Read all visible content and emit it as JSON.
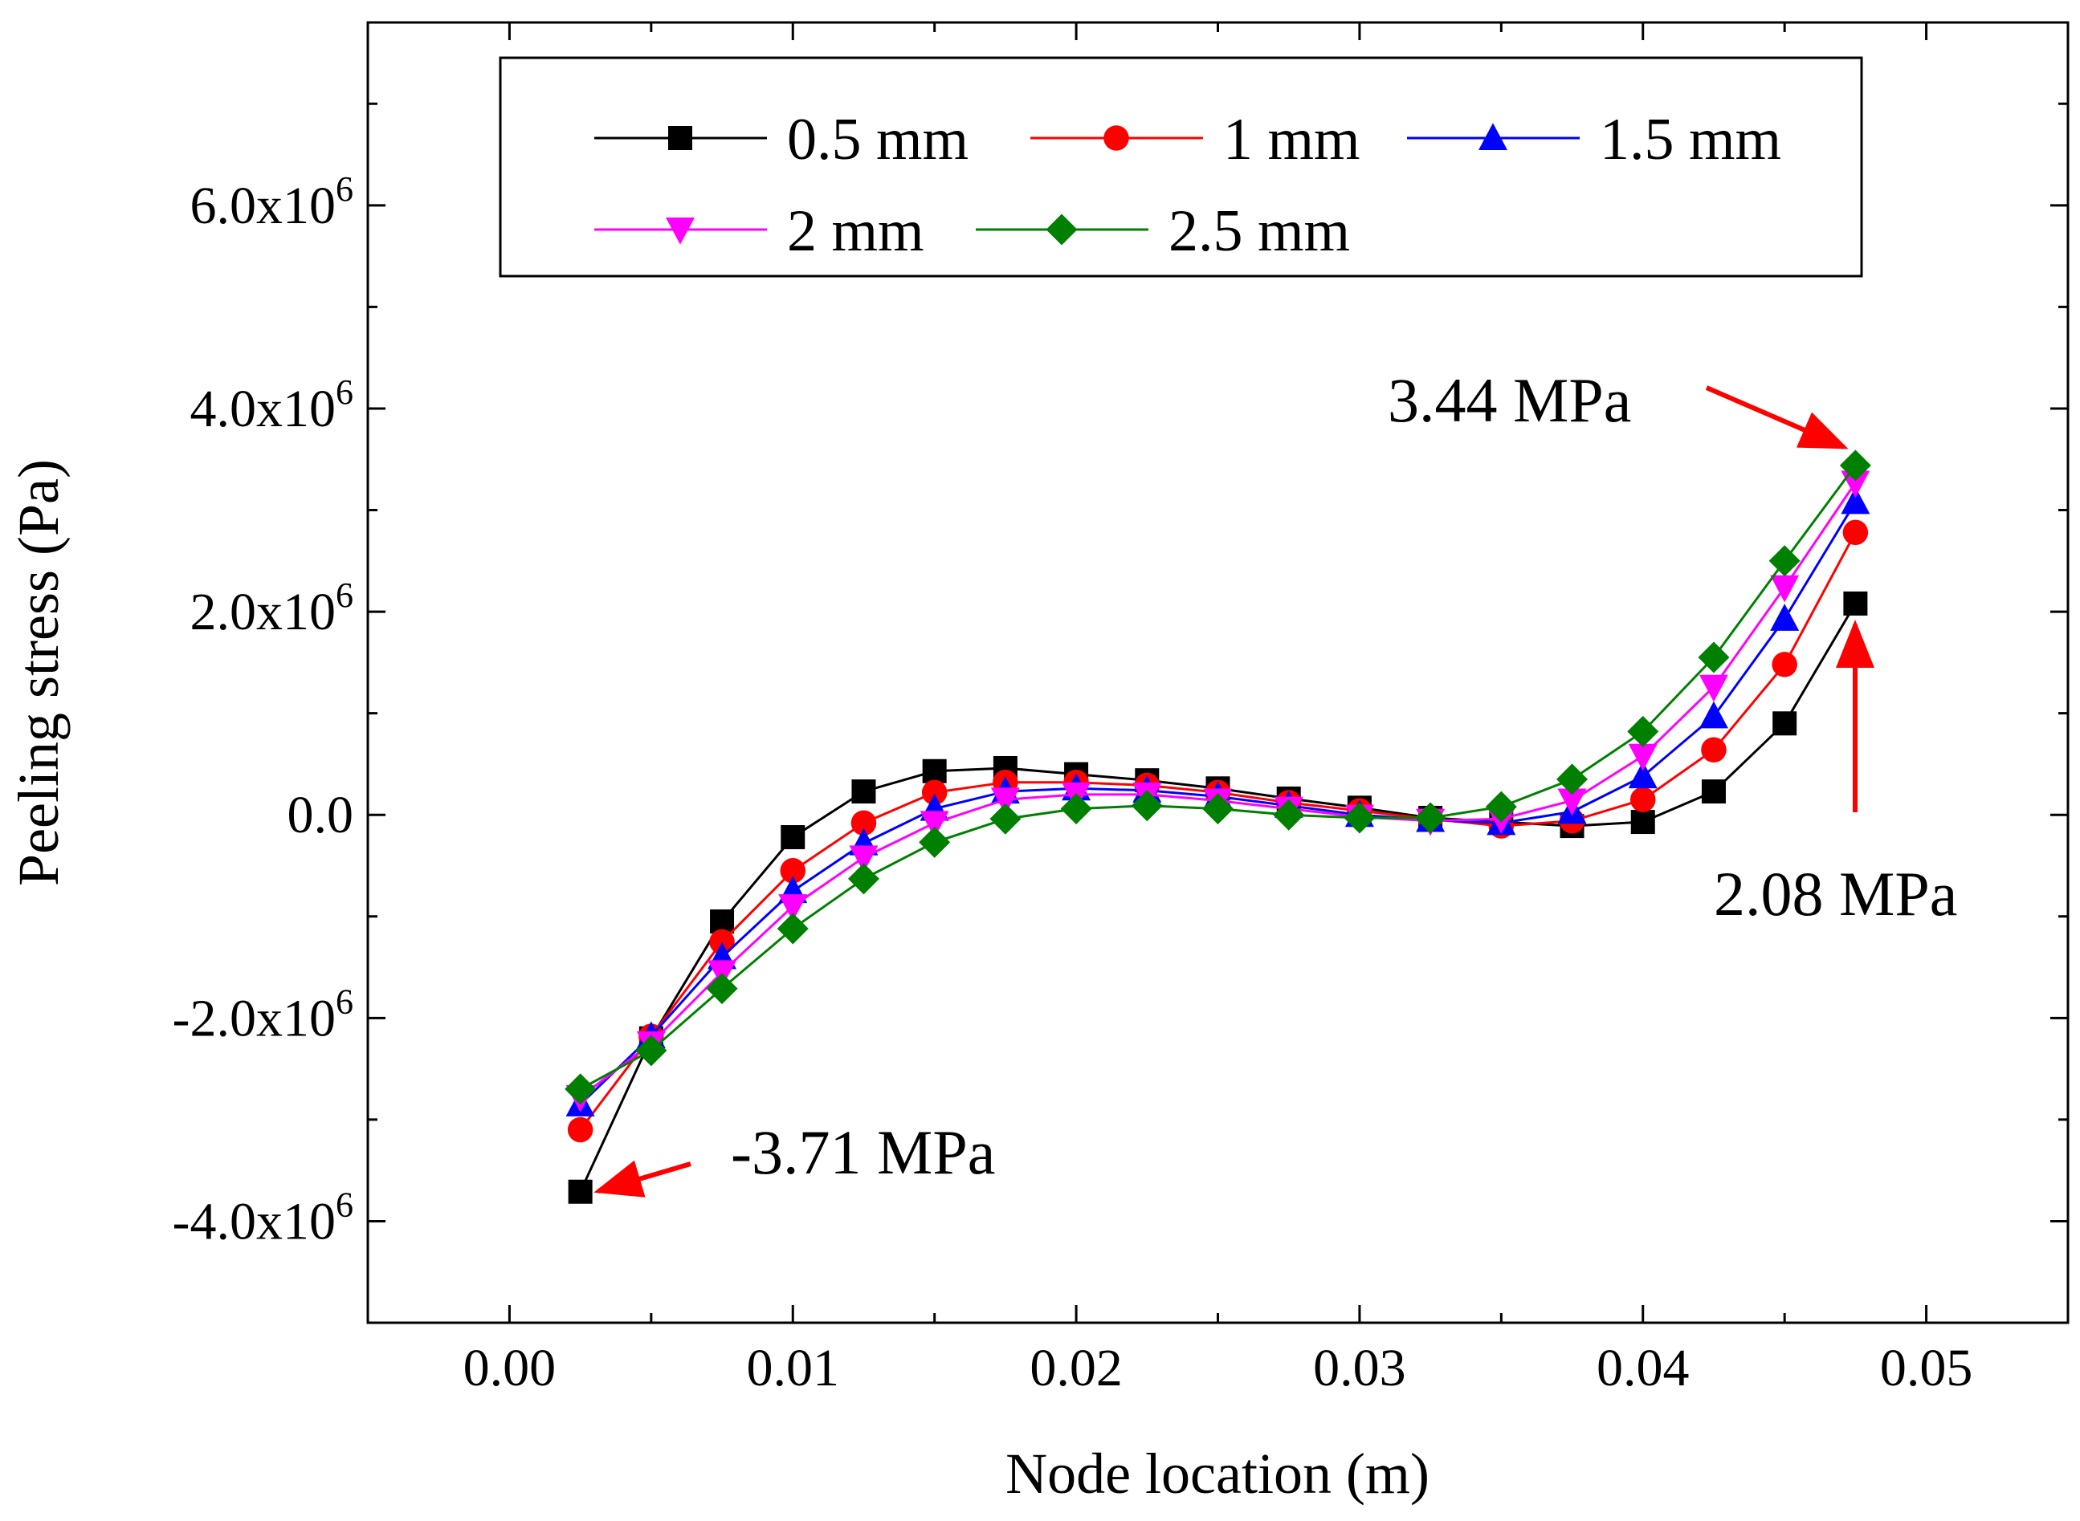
{
  "chart_data": {
    "type": "line",
    "title": "",
    "xlabel": "Node location (m)",
    "ylabel": "Peeling stress (Pa)",
    "xlim": [
      -0.005,
      0.055
    ],
    "ylim": [
      -5000000,
      7800000
    ],
    "x_ticks": [
      0.0,
      0.01,
      0.02,
      0.03,
      0.04,
      0.05
    ],
    "x_tick_labels": [
      "0.00",
      "0.01",
      "0.02",
      "0.03",
      "0.04",
      "0.05"
    ],
    "y_ticks": [
      -4000000,
      -2000000,
      0,
      2000000,
      4000000,
      6000000
    ],
    "y_tick_labels": [
      {
        "mantissa": "-4.0x10",
        "exp": "6"
      },
      {
        "mantissa": "-2.0x10",
        "exp": "6"
      },
      {
        "mantissa": "0.0",
        "exp": ""
      },
      {
        "mantissa": "2.0x10",
        "exp": "6"
      },
      {
        "mantissa": "4.0x10",
        "exp": "6"
      },
      {
        "mantissa": "6.0x10",
        "exp": "6"
      }
    ],
    "grid": false,
    "legend_position": "top-center",
    "x": [
      0.0025,
      0.005,
      0.0075,
      0.01,
      0.0125,
      0.015,
      0.0175,
      0.02,
      0.0225,
      0.025,
      0.0275,
      0.03,
      0.0325,
      0.035,
      0.0375,
      0.04,
      0.0425,
      0.045,
      0.0475
    ],
    "series": [
      {
        "name": "0.5 mm",
        "color": "#000000",
        "marker": "square",
        "values": [
          -3710000,
          -2200000,
          -1050000,
          -220000,
          230000,
          430000,
          460000,
          400000,
          340000,
          260000,
          160000,
          70000,
          -30000,
          -70000,
          -110000,
          -70000,
          230000,
          900000,
          2080000
        ]
      },
      {
        "name": "1 mm",
        "color": "#ff0000",
        "marker": "circle",
        "values": [
          -3100000,
          -2180000,
          -1250000,
          -550000,
          -80000,
          220000,
          320000,
          320000,
          290000,
          220000,
          120000,
          40000,
          -40000,
          -110000,
          -60000,
          150000,
          640000,
          1480000,
          2780000
        ]
      },
      {
        "name": "1.5 mm",
        "color": "#0000ff",
        "marker": "triangle-up",
        "values": [
          -2850000,
          -2180000,
          -1400000,
          -750000,
          -280000,
          60000,
          230000,
          260000,
          240000,
          180000,
          90000,
          0,
          -50000,
          -80000,
          30000,
          380000,
          970000,
          1930000,
          3080000
        ]
      },
      {
        "name": "2 mm",
        "color": "#ff00ff",
        "marker": "triangle-down",
        "values": [
          -2780000,
          -2250000,
          -1550000,
          -900000,
          -420000,
          -80000,
          150000,
          200000,
          200000,
          140000,
          60000,
          -20000,
          -60000,
          -40000,
          140000,
          580000,
          1260000,
          2240000,
          3270000
        ]
      },
      {
        "name": "2.5 mm",
        "color": "#008000",
        "marker": "diamond",
        "values": [
          -2700000,
          -2320000,
          -1710000,
          -1120000,
          -630000,
          -270000,
          -40000,
          60000,
          90000,
          60000,
          0,
          -30000,
          -30000,
          80000,
          350000,
          820000,
          1550000,
          2500000,
          3440000
        ]
      }
    ],
    "annotations": [
      {
        "text": "3.44 MPa",
        "x": 0.0475,
        "y": 3440000
      },
      {
        "text": "2.08 MPa",
        "x": 0.0475,
        "y": 2080000
      },
      {
        "text": "-3.71 MPa",
        "x": 0.0025,
        "y": -3710000
      }
    ],
    "annotation_color": "#ff0000"
  }
}
